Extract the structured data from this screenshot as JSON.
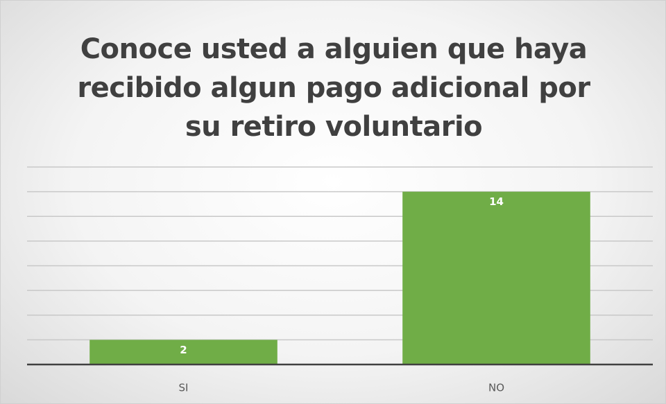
{
  "chart_data": {
    "type": "bar",
    "title": "Conoce usted a alguien que haya recibido algun pago adicional por su retiro voluntario",
    "categories": [
      "SI",
      "NO"
    ],
    "values": [
      2,
      14
    ],
    "color": "#70ad47",
    "ylim": [
      0,
      16
    ],
    "yticks": [
      0,
      2,
      4,
      6,
      8,
      10,
      12,
      14,
      16
    ],
    "grid": true
  }
}
